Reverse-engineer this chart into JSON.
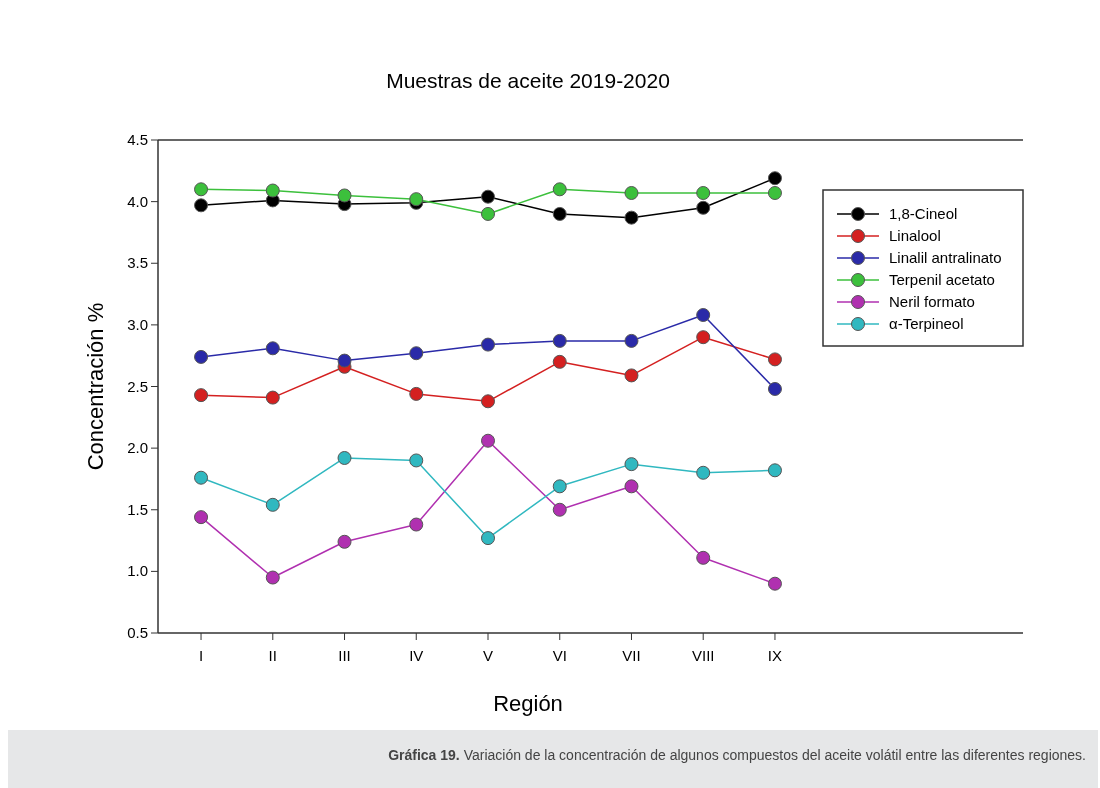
{
  "chart_data": {
    "type": "line",
    "title": "Muestras de aceite 2019-2020",
    "xlabel": "Región",
    "ylabel": "Concentración %",
    "categories": [
      "I",
      "II",
      "III",
      "IV",
      "V",
      "VI",
      "VII",
      "VIII",
      "IX"
    ],
    "series": [
      {
        "name": "1,8-Cineol",
        "color": "#000000",
        "values": [
          3.97,
          4.01,
          3.98,
          3.99,
          4.04,
          3.9,
          3.87,
          3.95,
          4.19
        ]
      },
      {
        "name": "Linalool",
        "color": "#d42020",
        "values": [
          2.43,
          2.41,
          2.66,
          2.44,
          2.38,
          2.7,
          2.59,
          2.9,
          2.72
        ]
      },
      {
        "name": "Linalil antralinato",
        "color": "#2a2aa8",
        "values": [
          2.74,
          2.81,
          2.71,
          2.77,
          2.84,
          2.87,
          2.87,
          3.08,
          2.48
        ]
      },
      {
        "name": "Terpenil acetato",
        "color": "#3cc03c",
        "values": [
          4.1,
          4.09,
          4.05,
          4.02,
          3.9,
          4.1,
          4.07,
          4.07,
          4.07
        ]
      },
      {
        "name": "Neril formato",
        "color": "#b030b0",
        "values": [
          1.44,
          0.95,
          1.24,
          1.38,
          2.06,
          1.5,
          1.69,
          1.11,
          0.9
        ]
      },
      {
        "name": "α-Terpineol",
        "color": "#30b8c0",
        "values": [
          1.76,
          1.54,
          1.92,
          1.9,
          1.27,
          1.69,
          1.87,
          1.8,
          1.82
        ]
      }
    ],
    "ylim": [
      0.5,
      4.5
    ],
    "yticks": [
      {
        "value": 0.5,
        "label": "0.5"
      },
      {
        "value": 1,
        "label": "1.0"
      },
      {
        "value": 1.5,
        "label": "1.5"
      },
      {
        "value": 2,
        "label": "2.0"
      },
      {
        "value": 2.5,
        "label": "2.5"
      },
      {
        "value": 3,
        "label": "3.0"
      },
      {
        "value": 3.5,
        "label": "3.5"
      },
      {
        "value": 4,
        "label": "4.0"
      },
      {
        "value": 4.5,
        "label": "4.5"
      }
    ],
    "grid": false,
    "legend": "right",
    "marker": "circle",
    "line_style": "solid",
    "annotations": [
      "Gráfica 19.",
      "Variación de la concentración de algunos compuestos del aceite volátil entre las diferentes regiones."
    ]
  }
}
